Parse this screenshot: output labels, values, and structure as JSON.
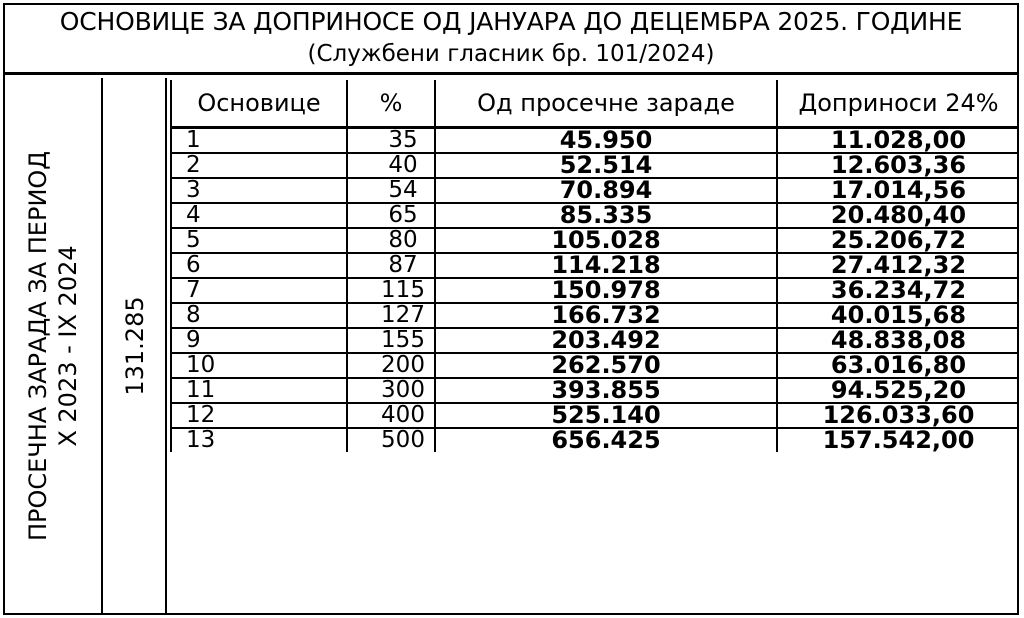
{
  "title": {
    "line1": "ОСНОВИЦЕ ЗА ДОПРИНОСЕ ОД ЈАНУАРА ДО ДЕЦЕМБРА 2025. ГОДИНЕ",
    "line2": "(Службени гласник бр. 101/2024)"
  },
  "side": {
    "label_line1": "ПРОСЕЧНА ЗАРАДА ЗА ПЕРИОД",
    "label_line2": "X 2023 - IX 2024",
    "value": "131.285"
  },
  "table": {
    "headers": [
      "Основице",
      "%",
      "Од просечне зараде",
      "Доприноси 24%"
    ],
    "rows": [
      [
        "1",
        "35",
        "45.950",
        "11.028,00"
      ],
      [
        "2",
        "40",
        "52.514",
        "12.603,36"
      ],
      [
        "3",
        "54",
        "70.894",
        "17.014,56"
      ],
      [
        "4",
        "65",
        "85.335",
        "20.480,40"
      ],
      [
        "5",
        "80",
        "105.028",
        "25.206,72"
      ],
      [
        "6",
        "87",
        "114.218",
        "27.412,32"
      ],
      [
        "7",
        "115",
        "150.978",
        "36.234,72"
      ],
      [
        "8",
        "127",
        "166.732",
        "40.015,68"
      ],
      [
        "9",
        "155",
        "203.492",
        "48.838,08"
      ],
      [
        "10",
        "200",
        "262.570",
        "63.016,80"
      ],
      [
        "11",
        "300",
        "393.855",
        "94.525,20"
      ],
      [
        "12",
        "400",
        "525.140",
        "126.033,60"
      ],
      [
        "13",
        "500",
        "656.425",
        "157.542,00"
      ]
    ]
  }
}
